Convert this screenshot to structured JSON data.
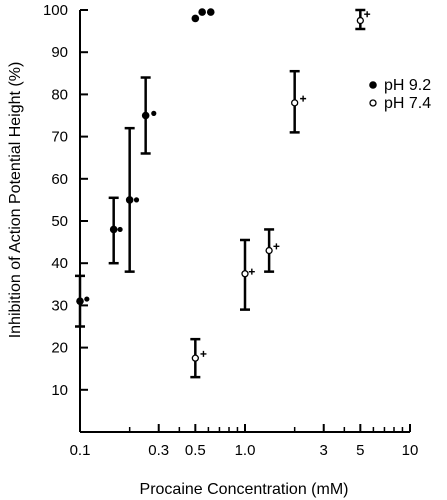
{
  "chart_data": {
    "type": "scatter",
    "x_scale": "log",
    "xlabel": "Procaine Concentration (mM)",
    "ylabel": "Inhibition of Action Potential Height  (%)",
    "xlim": [
      0.1,
      10
    ],
    "ylim": [
      0,
      100
    ],
    "grid": false,
    "legend_placement": "right",
    "x_ticks": [
      {
        "value": 0.1,
        "label": "0.1"
      },
      {
        "value": 0.3,
        "label": "0.3"
      },
      {
        "value": 0.5,
        "label": "0.5"
      },
      {
        "value": 1.0,
        "label": "1.0"
      },
      {
        "value": 3,
        "label": "3"
      },
      {
        "value": 5,
        "label": "5"
      },
      {
        "value": 10,
        "label": "10"
      }
    ],
    "x_minor_ticks": [
      0.2,
      0.4,
      0.6,
      0.7,
      0.8,
      0.9,
      2,
      4,
      6,
      7,
      8,
      9
    ],
    "y_ticks": [
      {
        "value": 10,
        "label": "10"
      },
      {
        "value": 20,
        "label": "20"
      },
      {
        "value": 30,
        "label": "30"
      },
      {
        "value": 40,
        "label": "40"
      },
      {
        "value": 50,
        "label": "50"
      },
      {
        "value": 60,
        "label": "60"
      },
      {
        "value": 70,
        "label": "70"
      },
      {
        "value": 80,
        "label": "80"
      },
      {
        "value": 90,
        "label": "90"
      },
      {
        "value": 100,
        "label": "100"
      }
    ],
    "series": [
      {
        "name": "pH 9.2",
        "marker": "filled",
        "points": [
          {
            "x": 0.1,
            "y": 31,
            "err_low": 25,
            "err_high": 37
          },
          {
            "x": 0.16,
            "y": 48,
            "err_low": 40,
            "err_high": 55.5
          },
          {
            "x": 0.2,
            "y": 55,
            "err_low": 38,
            "err_high": 72
          },
          {
            "x": 0.25,
            "y": 75,
            "err_low": 66,
            "err_high": 84
          },
          {
            "x": 0.5,
            "y": 98,
            "err_low": null,
            "err_high": null
          },
          {
            "x": 0.55,
            "y": 99.5,
            "err_low": null,
            "err_high": null
          },
          {
            "x": 0.62,
            "y": 99.5,
            "err_low": null,
            "err_high": null
          }
        ]
      },
      {
        "name": "pH 7.4",
        "marker": "open",
        "points": [
          {
            "x": 0.5,
            "y": 17.5,
            "err_low": 13,
            "err_high": 22
          },
          {
            "x": 1.0,
            "y": 37.5,
            "err_low": 29,
            "err_high": 45.5
          },
          {
            "x": 1.4,
            "y": 43,
            "err_low": 38,
            "err_high": 48
          },
          {
            "x": 2.0,
            "y": 78,
            "err_low": 71,
            "err_high": 85.5
          },
          {
            "x": 5.0,
            "y": 97.5,
            "err_low": 95.5,
            "err_high": 100
          }
        ]
      }
    ],
    "side_markers": [
      {
        "series": "pH 9.2",
        "symbol": "dot",
        "x": 0.11,
        "y": 31.5
      },
      {
        "series": "pH 9.2",
        "symbol": "dot",
        "x": 0.175,
        "y": 48
      },
      {
        "series": "pH 9.2",
        "symbol": "dot",
        "x": 0.22,
        "y": 55
      },
      {
        "series": "pH 9.2",
        "symbol": "dot",
        "x": 0.28,
        "y": 75.5
      },
      {
        "series": "pH 7.4",
        "symbol": "plus",
        "x": 0.56,
        "y": 18.5
      },
      {
        "series": "pH 7.4",
        "symbol": "plus",
        "x": 1.1,
        "y": 38
      },
      {
        "series": "pH 7.4",
        "symbol": "plus",
        "x": 1.55,
        "y": 44
      },
      {
        "series": "pH 7.4",
        "symbol": "plus",
        "x": 2.25,
        "y": 79
      },
      {
        "series": "pH 7.4",
        "symbol": "plus",
        "x": 5.5,
        "y": 99
      }
    ]
  }
}
